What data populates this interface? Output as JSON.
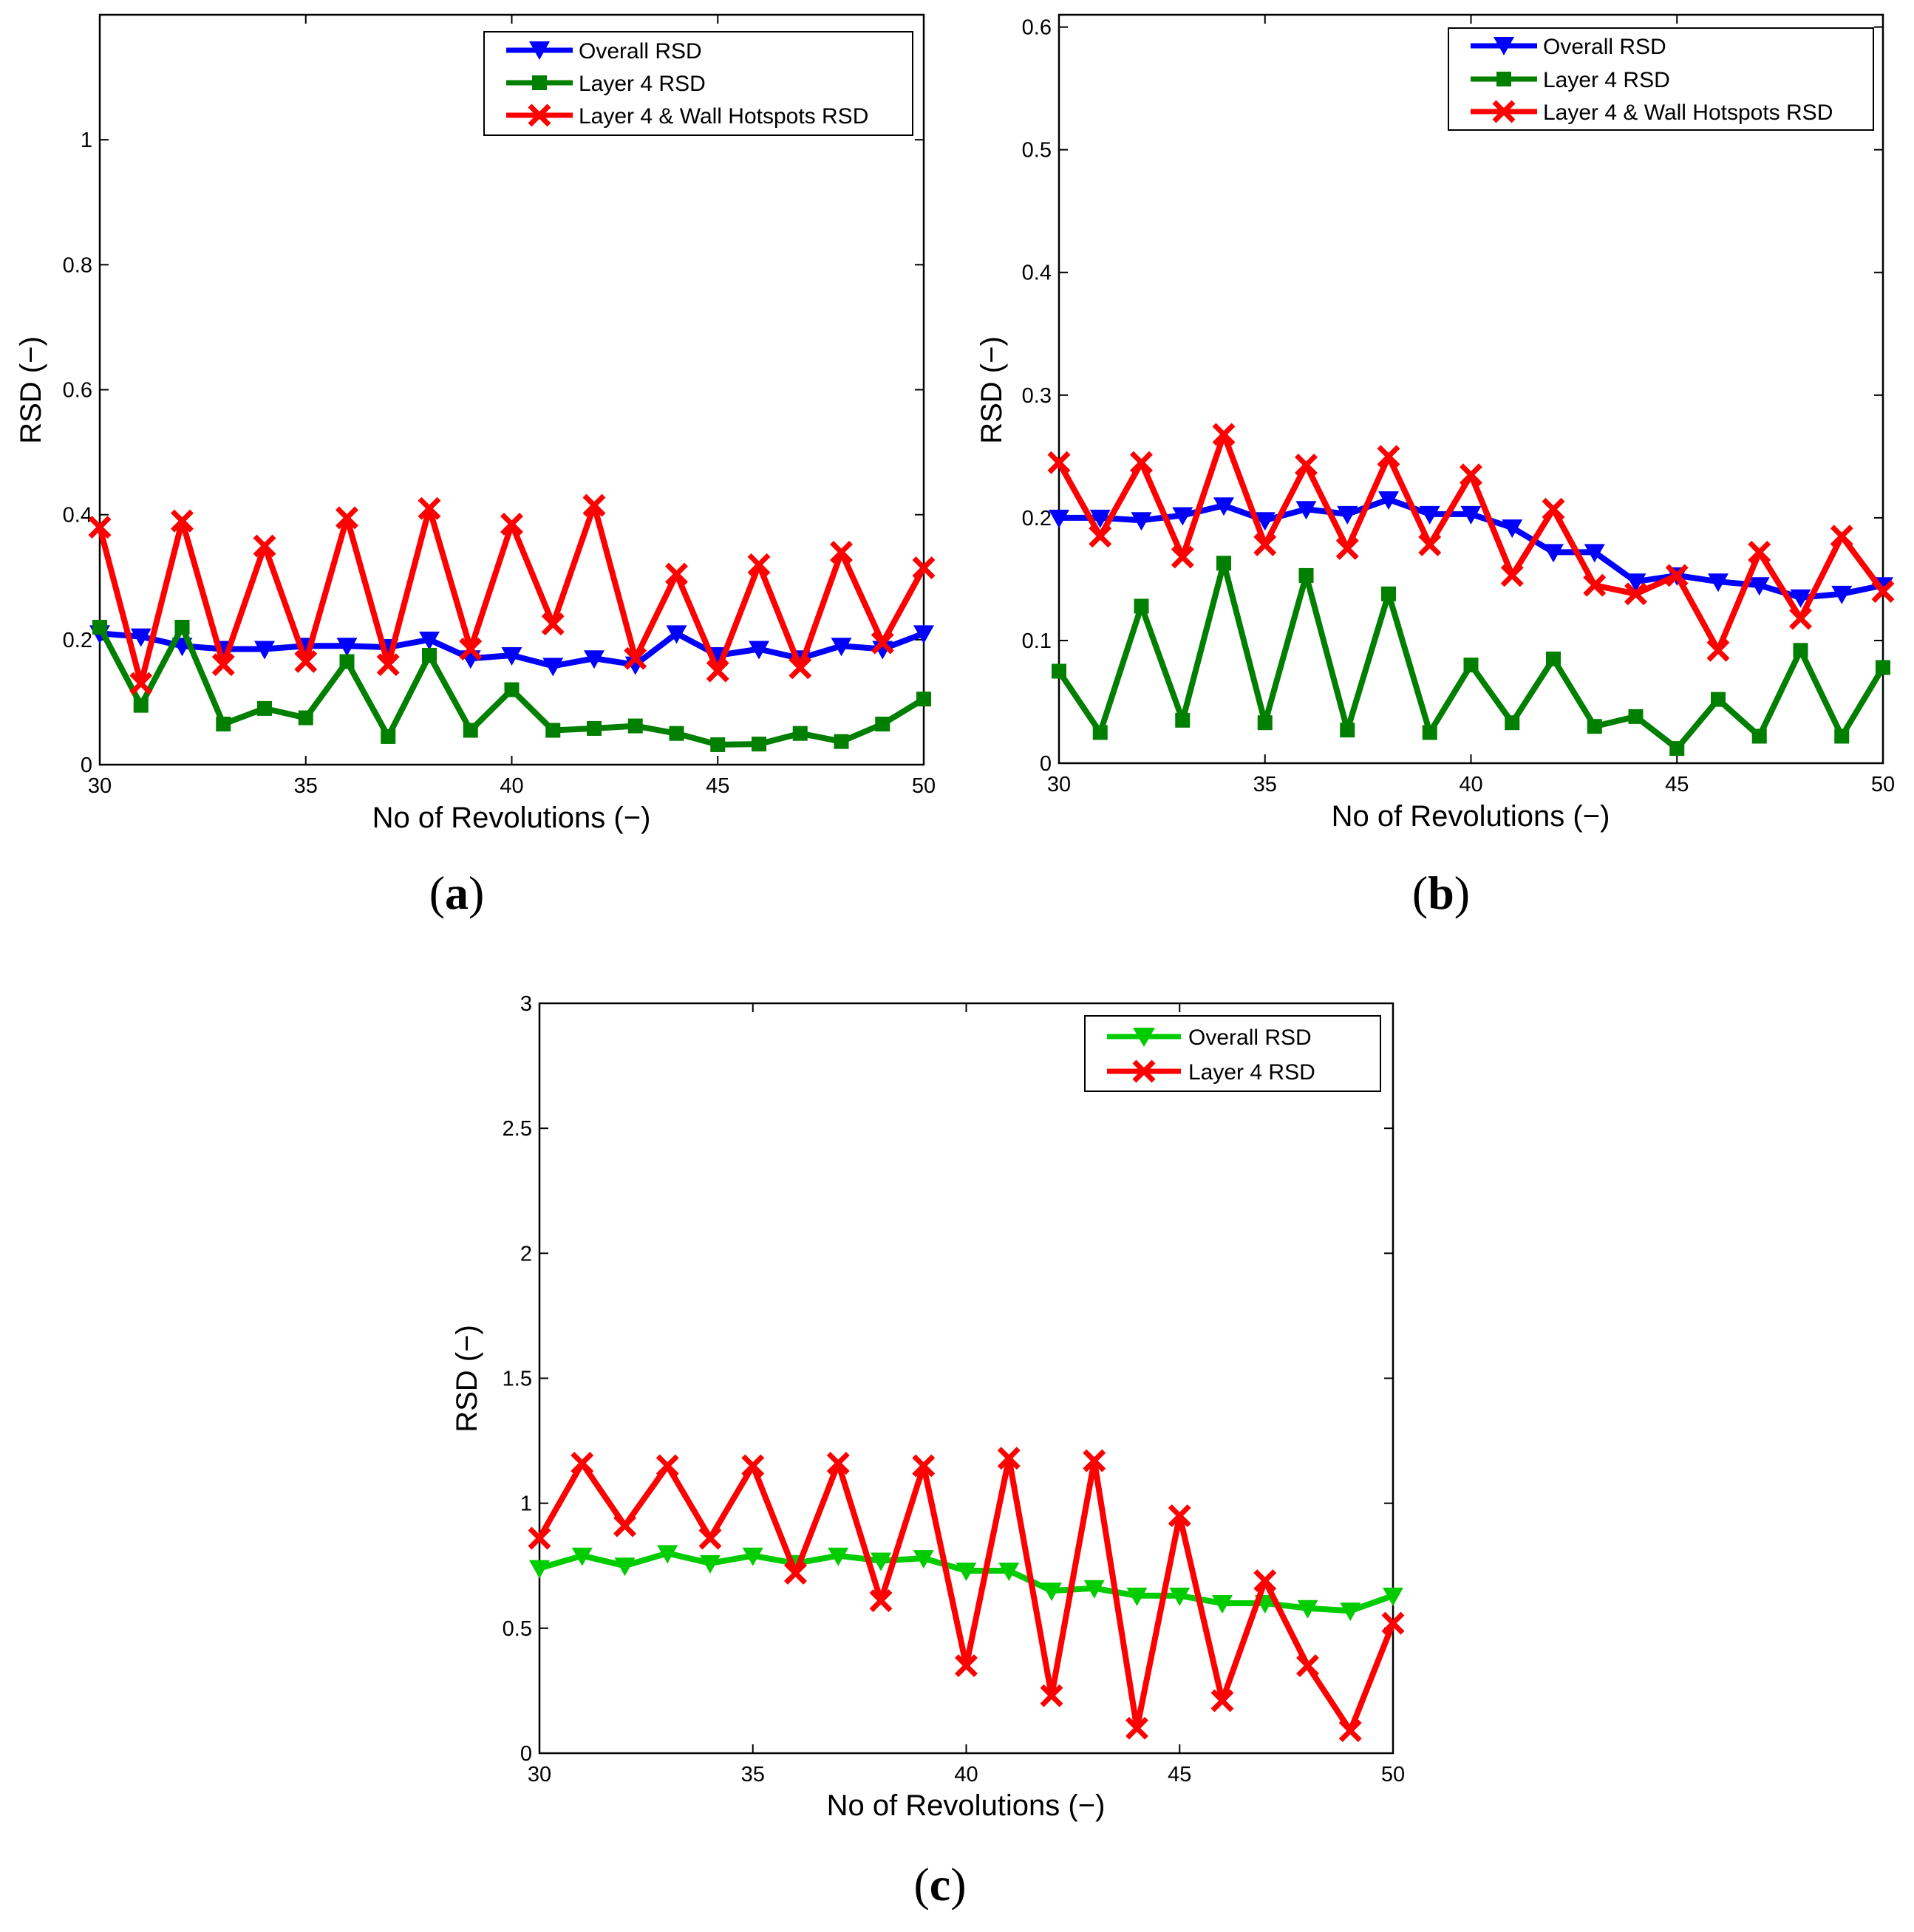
{
  "chart_data": [
    {
      "type": "line",
      "panel_label": "a",
      "xlabel": "No of Revolutions (−)",
      "ylabel": "RSD (−)",
      "xlim": [
        30,
        50
      ],
      "ylim": [
        0,
        1.2
      ],
      "xticks": [
        30,
        35,
        40,
        45,
        50
      ],
      "yticks": [
        0,
        0.2,
        0.4,
        0.6,
        0.8,
        1
      ],
      "xtick_labels": [
        "30",
        "35",
        "40",
        "45",
        "50"
      ],
      "ytick_labels": [
        "0",
        "0.2",
        "0.4",
        "0.6",
        "0.8",
        "1"
      ],
      "grid": false,
      "legend_position": "top-right",
      "x": [
        30,
        31,
        32,
        33,
        34,
        35,
        36,
        37,
        38,
        39,
        40,
        41,
        42,
        43,
        44,
        45,
        46,
        47,
        48,
        49,
        50
      ],
      "series": [
        {
          "name": "Overall RSD",
          "color": "#0000ff",
          "marker": "triangle-down",
          "values": [
            0.21,
            0.205,
            0.19,
            0.185,
            0.185,
            0.19,
            0.19,
            0.188,
            0.2,
            0.17,
            0.175,
            0.158,
            0.17,
            0.16,
            0.21,
            0.175,
            0.185,
            0.17,
            0.19,
            0.185,
            0.21
          ]
        },
        {
          "name": "Layer 4 RSD",
          "color": "#007f00",
          "marker": "square",
          "values": [
            0.22,
            0.095,
            0.22,
            0.065,
            0.09,
            0.075,
            0.165,
            0.045,
            0.175,
            0.055,
            0.12,
            0.055,
            0.058,
            0.062,
            0.05,
            0.032,
            0.033,
            0.05,
            0.037,
            0.065,
            0.105
          ]
        },
        {
          "name": "Layer 4 & Wall Hotspots RSD",
          "color": "#ff0000",
          "marker": "x",
          "values": [
            0.38,
            0.13,
            0.39,
            0.16,
            0.35,
            0.165,
            0.395,
            0.16,
            0.41,
            0.185,
            0.385,
            0.225,
            0.415,
            0.17,
            0.305,
            0.15,
            0.32,
            0.155,
            0.34,
            0.195,
            0.315
          ]
        }
      ]
    },
    {
      "type": "line",
      "panel_label": "b",
      "xlabel": "No of Revolutions (−)",
      "ylabel": "RSD (−)",
      "xlim": [
        30,
        50
      ],
      "ylim": [
        0,
        0.61
      ],
      "xticks": [
        30,
        35,
        40,
        45,
        50
      ],
      "yticks": [
        0,
        0.1,
        0.2,
        0.3,
        0.4,
        0.5,
        0.6
      ],
      "xtick_labels": [
        "30",
        "35",
        "40",
        "45",
        "50"
      ],
      "ytick_labels": [
        "0",
        "0.1",
        "0.2",
        "0.3",
        "0.4",
        "0.5",
        "0.6"
      ],
      "grid": false,
      "legend_position": "top-right",
      "x": [
        30,
        31,
        32,
        33,
        34,
        35,
        36,
        37,
        38,
        39,
        40,
        41,
        42,
        43,
        44,
        45,
        46,
        47,
        48,
        49,
        50
      ],
      "series": [
        {
          "name": "Overall RSD",
          "color": "#0000ff",
          "marker": "triangle-down",
          "values": [
            0.2,
            0.2,
            0.198,
            0.202,
            0.21,
            0.198,
            0.207,
            0.203,
            0.215,
            0.203,
            0.203,
            0.192,
            0.172,
            0.172,
            0.148,
            0.153,
            0.148,
            0.145,
            0.135,
            0.138,
            0.145
          ]
        },
        {
          "name": "Layer 4 RSD",
          "color": "#007f00",
          "marker": "square",
          "values": [
            0.075,
            0.025,
            0.128,
            0.035,
            0.163,
            0.033,
            0.153,
            0.027,
            0.138,
            0.025,
            0.08,
            0.033,
            0.085,
            0.03,
            0.038,
            0.012,
            0.052,
            0.022,
            0.092,
            0.022,
            0.078
          ]
        },
        {
          "name": "Layer 4 & Wall Hotspots RSD",
          "color": "#ff0000",
          "marker": "x",
          "values": [
            0.245,
            0.185,
            0.245,
            0.168,
            0.268,
            0.178,
            0.243,
            0.175,
            0.25,
            0.178,
            0.235,
            0.153,
            0.207,
            0.145,
            0.138,
            0.153,
            0.092,
            0.172,
            0.118,
            0.185,
            0.14
          ]
        }
      ]
    },
    {
      "type": "line",
      "panel_label": "c",
      "xlabel": "No of Revolutions (−)",
      "ylabel": "RSD (−)",
      "xlim": [
        30,
        50
      ],
      "ylim": [
        0,
        3
      ],
      "xticks": [
        30,
        35,
        40,
        45,
        50
      ],
      "yticks": [
        0,
        0.5,
        1,
        1.5,
        2,
        2.5,
        3
      ],
      "xtick_labels": [
        "30",
        "35",
        "40",
        "45",
        "50"
      ],
      "ytick_labels": [
        "0",
        "0.5",
        "1",
        "1.5",
        "2",
        "2.5",
        "3"
      ],
      "grid": false,
      "legend_position": "top-right",
      "x": [
        30,
        31,
        32,
        33,
        34,
        35,
        36,
        37,
        38,
        39,
        40,
        41,
        42,
        43,
        44,
        45,
        46,
        47,
        48,
        49,
        50
      ],
      "series": [
        {
          "name": "Overall RSD",
          "color": "#00cc00",
          "marker": "triangle-down",
          "values": [
            0.74,
            0.79,
            0.75,
            0.8,
            0.76,
            0.79,
            0.76,
            0.79,
            0.77,
            0.78,
            0.73,
            0.73,
            0.65,
            0.66,
            0.63,
            0.63,
            0.6,
            0.6,
            0.58,
            0.57,
            0.63
          ]
        },
        {
          "name": "Layer 4 RSD",
          "color": "#ff0000",
          "marker": "x",
          "values": [
            0.86,
            1.16,
            0.91,
            1.15,
            0.86,
            1.15,
            0.72,
            1.16,
            0.61,
            1.15,
            0.35,
            1.18,
            0.23,
            1.17,
            0.1,
            0.95,
            0.21,
            0.69,
            0.35,
            0.09,
            0.52
          ]
        }
      ]
    }
  ]
}
